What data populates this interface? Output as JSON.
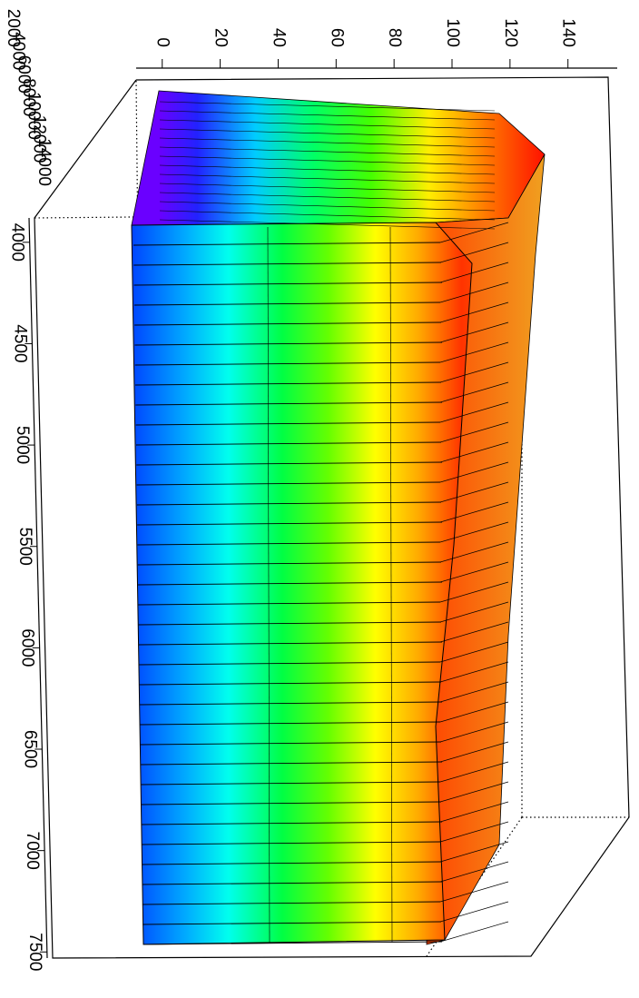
{
  "chart_data": {
    "type": "surface3d",
    "zlim": [
      -9,
      157
    ],
    "zticks": [
      0,
      20,
      40,
      60,
      80,
      100,
      120,
      140
    ],
    "xlim": [
      3880,
      7530
    ],
    "xticks": [
      4000,
      4500,
      5000,
      5500,
      6000,
      6500,
      7000,
      7500
    ],
    "ylim": [
      2000,
      14000
    ],
    "yticks": [
      2000,
      4000,
      6000,
      8000,
      10000,
      12000,
      14000
    ]
  }
}
